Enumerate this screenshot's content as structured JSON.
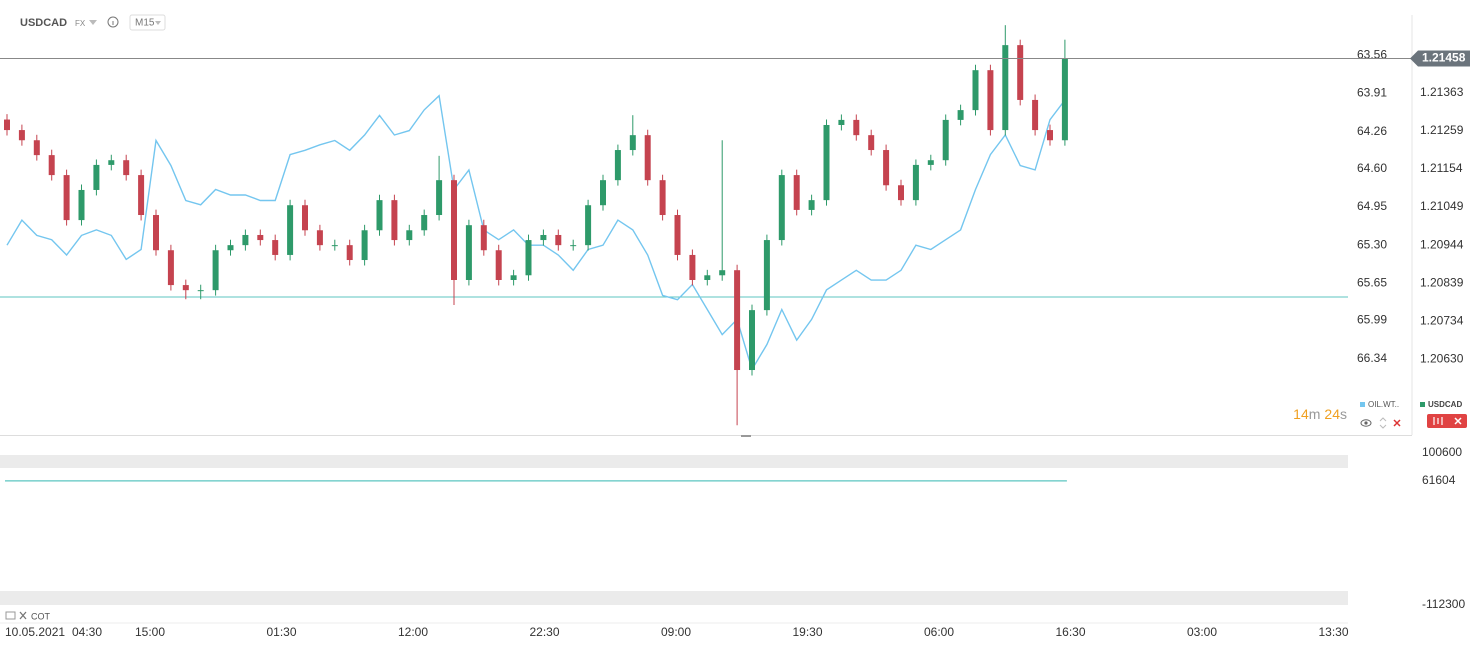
{
  "header": {
    "symbol": "USDCAD",
    "market": "FX",
    "interval": "M15"
  },
  "chart_data": {
    "type": "candlestick",
    "x_labels": [
      "10.05.2021",
      "04:30",
      "15:00",
      "01:30",
      "12:00",
      "22:30",
      "09:00",
      "19:30",
      "06:00",
      "16:30",
      "03:00",
      "13:30"
    ],
    "series": [
      {
        "name": "USDCAD",
        "type": "candlestick",
        "up_color": "#2e9a6a",
        "down_color": "#c5434f",
        "values": [
          [
            1.2129,
            1.21305,
            1.21246,
            1.21261
          ],
          [
            1.21261,
            1.21276,
            1.21218,
            1.21233
          ],
          [
            1.21233,
            1.21248,
            1.21177,
            1.21192
          ],
          [
            1.21192,
            1.21207,
            1.21122,
            1.21137
          ],
          [
            1.21137,
            1.21152,
            1.20998,
            1.21013
          ],
          [
            1.21013,
            1.21111,
            1.20998,
            1.21096
          ],
          [
            1.21096,
            1.2118,
            1.21081,
            1.21165
          ],
          [
            1.21165,
            1.21193,
            1.2115,
            1.21178
          ],
          [
            1.21178,
            1.21193,
            1.21122,
            1.21137
          ],
          [
            1.21137,
            1.21152,
            1.21012,
            1.21027
          ],
          [
            1.21027,
            1.21042,
            1.20915,
            1.2093
          ],
          [
            1.2093,
            1.20945,
            1.20819,
            1.20834
          ],
          [
            1.20834,
            1.20849,
            1.20795,
            1.2082
          ],
          [
            1.2082,
            1.20835,
            1.20795,
            1.2082
          ],
          [
            1.2082,
            1.20945,
            1.20805,
            1.2093
          ],
          [
            1.2093,
            1.20959,
            1.20915,
            1.20944
          ],
          [
            1.20944,
            1.20987,
            1.20929,
            1.20972
          ],
          [
            1.20972,
            1.20987,
            1.20943,
            1.20958
          ],
          [
            1.20958,
            1.20973,
            1.20902,
            1.20917
          ],
          [
            1.20917,
            1.21069,
            1.20902,
            1.21054
          ],
          [
            1.21054,
            1.21069,
            1.2097,
            1.20985
          ],
          [
            1.20985,
            1.21,
            1.20929,
            1.20944
          ],
          [
            1.20944,
            1.20959,
            1.20929,
            1.20944
          ],
          [
            1.20944,
            1.20959,
            1.20888,
            1.20903
          ],
          [
            1.20903,
            1.21,
            1.20888,
            1.20985
          ],
          [
            1.20985,
            1.21083,
            1.2097,
            1.21068
          ],
          [
            1.21068,
            1.21083,
            1.20943,
            1.20958
          ],
          [
            1.20958,
            1.21,
            1.20943,
            1.20985
          ],
          [
            1.20985,
            1.21042,
            1.2097,
            1.21027
          ],
          [
            1.21027,
            1.2119,
            1.21012,
            1.21123
          ],
          [
            1.21123,
            1.21138,
            1.20779,
            1.20848
          ],
          [
            1.20848,
            1.21014,
            1.20833,
            1.20999
          ],
          [
            1.20999,
            1.21014,
            1.20915,
            1.2093
          ],
          [
            1.2093,
            1.20945,
            1.20833,
            1.20848
          ],
          [
            1.20848,
            1.20876,
            1.20833,
            1.20861
          ],
          [
            1.20861,
            1.20973,
            1.20846,
            1.20958
          ],
          [
            1.20958,
            1.20987,
            1.20943,
            1.20972
          ],
          [
            1.20972,
            1.20987,
            1.20929,
            1.20944
          ],
          [
            1.20944,
            1.20959,
            1.20929,
            1.20944
          ],
          [
            1.20944,
            1.21069,
            1.20929,
            1.21054
          ],
          [
            1.21054,
            1.21138,
            1.21039,
            1.21123
          ],
          [
            1.21123,
            1.21221,
            1.21108,
            1.21206
          ],
          [
            1.21206,
            1.21302,
            1.21191,
            1.21247
          ],
          [
            1.21247,
            1.21262,
            1.21108,
            1.21123
          ],
          [
            1.21123,
            1.21138,
            1.21012,
            1.21027
          ],
          [
            1.21027,
            1.21042,
            1.20902,
            1.20917
          ],
          [
            1.20917,
            1.20932,
            1.20833,
            1.20848
          ],
          [
            1.20848,
            1.20876,
            1.20833,
            1.20861
          ],
          [
            1.20861,
            1.21233,
            1.20846,
            1.20875
          ],
          [
            1.20875,
            1.2089,
            1.20448,
            1.206
          ],
          [
            1.206,
            1.2078,
            1.20585,
            1.20765
          ],
          [
            1.20765,
            1.20973,
            1.2075,
            1.20958
          ],
          [
            1.20958,
            1.21152,
            1.20943,
            1.21137
          ],
          [
            1.21137,
            1.21152,
            1.21026,
            1.21041
          ],
          [
            1.21041,
            1.21083,
            1.21026,
            1.21068
          ],
          [
            1.21068,
            1.2129,
            1.21053,
            1.21275
          ],
          [
            1.21275,
            1.21304,
            1.2126,
            1.21289
          ],
          [
            1.21289,
            1.21304,
            1.21232,
            1.21247
          ],
          [
            1.21247,
            1.21262,
            1.21191,
            1.21206
          ],
          [
            1.21206,
            1.21221,
            1.21094,
            1.21109
          ],
          [
            1.21109,
            1.21124,
            1.21053,
            1.21068
          ],
          [
            1.21068,
            1.2118,
            1.21053,
            1.21165
          ],
          [
            1.21165,
            1.21193,
            1.2115,
            1.21178
          ],
          [
            1.21178,
            1.21304,
            1.21163,
            1.21289
          ],
          [
            1.21289,
            1.21331,
            1.21274,
            1.21316
          ],
          [
            1.21316,
            1.21441,
            1.21301,
            1.21426
          ],
          [
            1.21426,
            1.21441,
            1.21246,
            1.21261
          ],
          [
            1.21261,
            1.2155,
            1.21246,
            1.21495
          ],
          [
            1.21495,
            1.2151,
            1.21329,
            1.21344
          ],
          [
            1.21344,
            1.21359,
            1.21246,
            1.21261
          ],
          [
            1.21261,
            1.21276,
            1.21218,
            1.21233
          ],
          [
            1.21233,
            1.2151,
            1.21218,
            1.21458
          ]
        ]
      },
      {
        "name": "OIL.WT..",
        "type": "line",
        "axis": "y2",
        "color": "#74c6ef",
        "values": [
          65.3,
          65.07,
          65.21,
          65.25,
          65.39,
          65.21,
          65.16,
          65.21,
          65.43,
          65.34,
          64.34,
          64.57,
          64.89,
          64.93,
          64.79,
          64.84,
          64.84,
          64.89,
          64.89,
          64.47,
          64.43,
          64.38,
          64.34,
          64.43,
          64.29,
          64.11,
          64.29,
          64.25,
          64.06,
          63.93,
          64.79,
          64.61,
          65.16,
          65.25,
          65.16,
          65.3,
          65.3,
          65.39,
          65.53,
          65.34,
          65.3,
          65.07,
          65.16,
          65.39,
          65.76,
          65.8,
          65.66,
          65.89,
          66.12,
          65.98,
          66.44,
          66.21,
          65.89,
          66.17,
          65.98,
          65.71,
          65.62,
          65.53,
          65.62,
          65.62,
          65.53,
          65.3,
          65.34,
          65.25,
          65.16,
          64.79,
          64.47,
          64.29,
          64.57,
          64.61,
          64.15,
          63.97
        ]
      }
    ],
    "ylim": [
      1.20421,
      1.21578
    ],
    "yticks": [
      1.21363,
      1.21259,
      1.21154,
      1.21049,
      1.20944,
      1.20839,
      1.20734,
      {
        "value": 1.2063,
        "label": "1.20630"
      }
    ],
    "y2lim": [
      63.19,
      67.04
    ],
    "y2_inverted": true,
    "y2ticks": [
      63.56,
      63.91,
      64.26,
      {
        "value": 64.6,
        "label": "64.60"
      },
      64.95,
      {
        "value": 65.3,
        "label": "65.30"
      },
      65.65,
      65.99,
      66.34
    ]
  },
  "countdown": {
    "minutes": "14",
    "minutes_unit": "m",
    "seconds": "24",
    "seconds_unit": "s"
  },
  "indicator": {
    "name": "COT",
    "color": "#5cc6c0",
    "yticks": [
      100600,
      61604,
      -112300
    ]
  }
}
